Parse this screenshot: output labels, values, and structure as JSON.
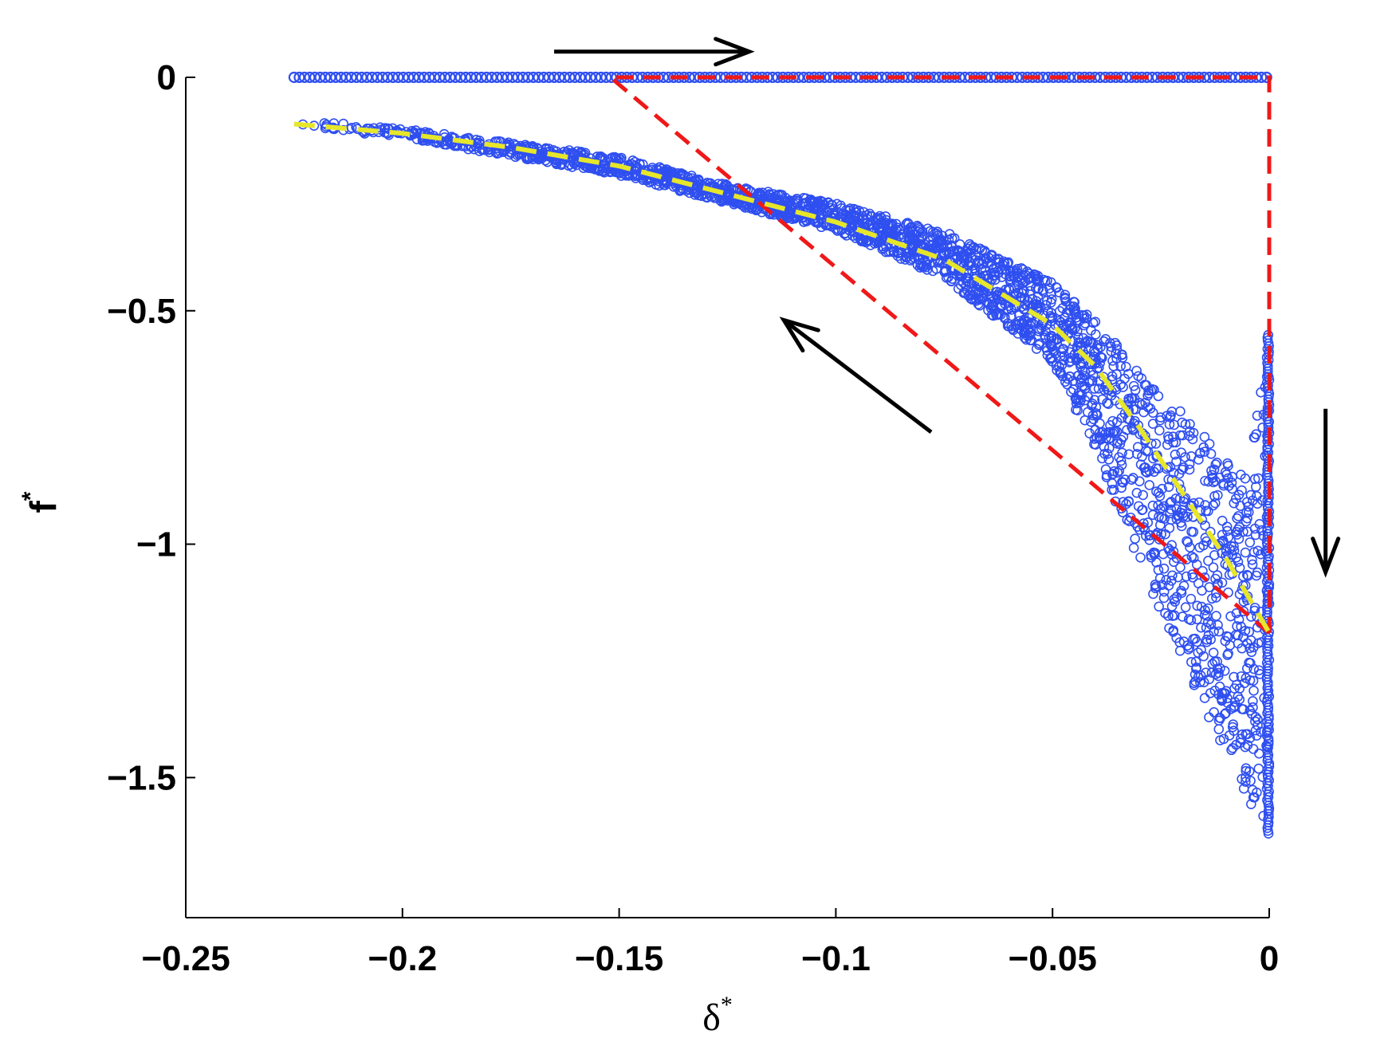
{
  "chart_data": {
    "type": "scatter",
    "title": "",
    "xlabel": "δ",
    "xlabel_superscript": "*",
    "ylabel": "f",
    "ylabel_superscript": "*",
    "xlim": [
      -0.25,
      0
    ],
    "ylim": [
      -1.8,
      0
    ],
    "xticks": [
      -0.25,
      -0.2,
      -0.15,
      -0.1,
      -0.05,
      0
    ],
    "xtick_labels": [
      "−0.25",
      "−0.2",
      "−0.15",
      "−0.1",
      "−0.05",
      "0"
    ],
    "yticks": [
      0,
      -0.5,
      -1,
      -1.5
    ],
    "ytick_labels": [
      "0",
      "−0.5",
      "−1",
      "−1.5"
    ],
    "grid": false,
    "colors": {
      "scatter": "#2f4ff0",
      "mean_curve": "#e6e62a",
      "envelope": "#f01818",
      "arrows": "#000000"
    },
    "series": [
      {
        "kind": "scatter-band",
        "marker": "open-circle",
        "top_branch": {
          "x_range": [
            -0.225,
            0
          ],
          "y": 0
        },
        "lower_band": {
          "x": [
            -0.225,
            -0.2,
            -0.175,
            -0.15,
            -0.125,
            -0.1,
            -0.075,
            -0.05,
            -0.04,
            -0.03,
            -0.02,
            -0.01,
            -0.005,
            0
          ],
          "y_upper": [
            -0.09,
            -0.11,
            -0.14,
            -0.17,
            -0.23,
            -0.27,
            -0.33,
            -0.44,
            -0.52,
            -0.63,
            -0.71,
            -0.82,
            -0.86,
            -0.55
          ],
          "y_lower": [
            -0.11,
            -0.13,
            -0.17,
            -0.21,
            -0.27,
            -0.33,
            -0.43,
            -0.61,
            -0.8,
            -1.04,
            -1.25,
            -1.45,
            -1.55,
            -1.64
          ]
        },
        "vertical_branch": {
          "x": 0,
          "y_range": [
            -1.62,
            -0.55
          ]
        }
      },
      {
        "kind": "dashed-line",
        "x": [
          -0.225,
          -0.2,
          -0.175,
          -0.15,
          -0.125,
          -0.1,
          -0.075,
          -0.05,
          -0.04,
          -0.03,
          -0.02,
          -0.01,
          0
        ],
        "y": [
          -0.1,
          -0.12,
          -0.15,
          -0.19,
          -0.25,
          -0.31,
          -0.39,
          -0.53,
          -0.62,
          -0.75,
          -0.89,
          -1.03,
          -1.19
        ]
      },
      {
        "kind": "dashed-polyline",
        "x": [
          0,
          -0.152,
          -0.152,
          0,
          0
        ],
        "y": [
          -1.19,
          0,
          0,
          0,
          -1.19
        ]
      }
    ],
    "annotations": [
      {
        "type": "arrow",
        "direction": "right",
        "from": [
          -0.165,
          0.055
        ],
        "to": [
          -0.12,
          0.055
        ]
      },
      {
        "type": "arrow",
        "direction": "up-left",
        "from": [
          -0.078,
          -0.76
        ],
        "to": [
          -0.112,
          -0.52
        ]
      },
      {
        "type": "arrow",
        "direction": "down",
        "from": [
          0.013,
          -0.71
        ],
        "to": [
          0.013,
          -1.06
        ]
      }
    ]
  }
}
